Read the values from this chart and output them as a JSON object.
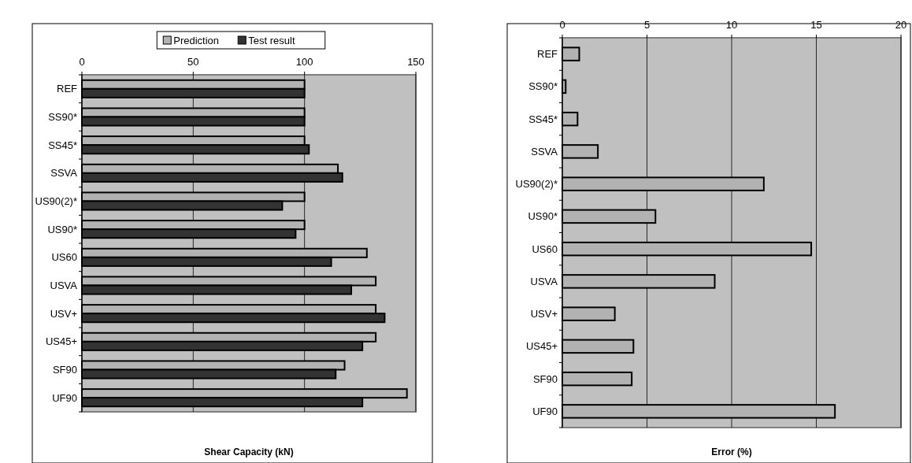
{
  "chart_data": [
    {
      "type": "bar",
      "orientation": "horizontal",
      "categories": [
        "REF",
        "SS90*",
        "SS45*",
        "SSVA",
        "US90(2)*",
        "US90*",
        "US60",
        "USVA",
        "USV+",
        "US45+",
        "SF90",
        "UF90"
      ],
      "series": [
        {
          "name": "Prediction",
          "color": "#b2b2b2",
          "values": [
            100,
            100,
            100,
            115,
            100,
            100,
            128,
            132,
            132,
            132,
            118,
            146
          ]
        },
        {
          "name": "Test result",
          "color": "#333333",
          "values": [
            100,
            100,
            102,
            117,
            90,
            96,
            112,
            121,
            136,
            126,
            114,
            126
          ]
        }
      ],
      "xlim": [
        0,
        150
      ],
      "xticks": [
        0,
        50,
        100,
        150
      ],
      "xlabel": "Shear Capacity (kN)",
      "grid": "x",
      "legend": "top"
    },
    {
      "type": "bar",
      "orientation": "horizontal",
      "categories": [
        "REF",
        "SS90*",
        "SS45*",
        "SSVA",
        "US90(2)*",
        "US90*",
        "US60",
        "USVA",
        "USV+",
        "US45+",
        "SF90",
        "UF90"
      ],
      "values": [
        1.0,
        0.2,
        0.9,
        2.1,
        11.9,
        5.5,
        14.7,
        9.0,
        3.1,
        4.2,
        4.1,
        16.1
      ],
      "color": "#b2b2b2",
      "xlim": [
        0,
        20
      ],
      "xticks": [
        0,
        5,
        10,
        15,
        20
      ],
      "xlabel": "Error (%)",
      "grid": "x"
    }
  ]
}
